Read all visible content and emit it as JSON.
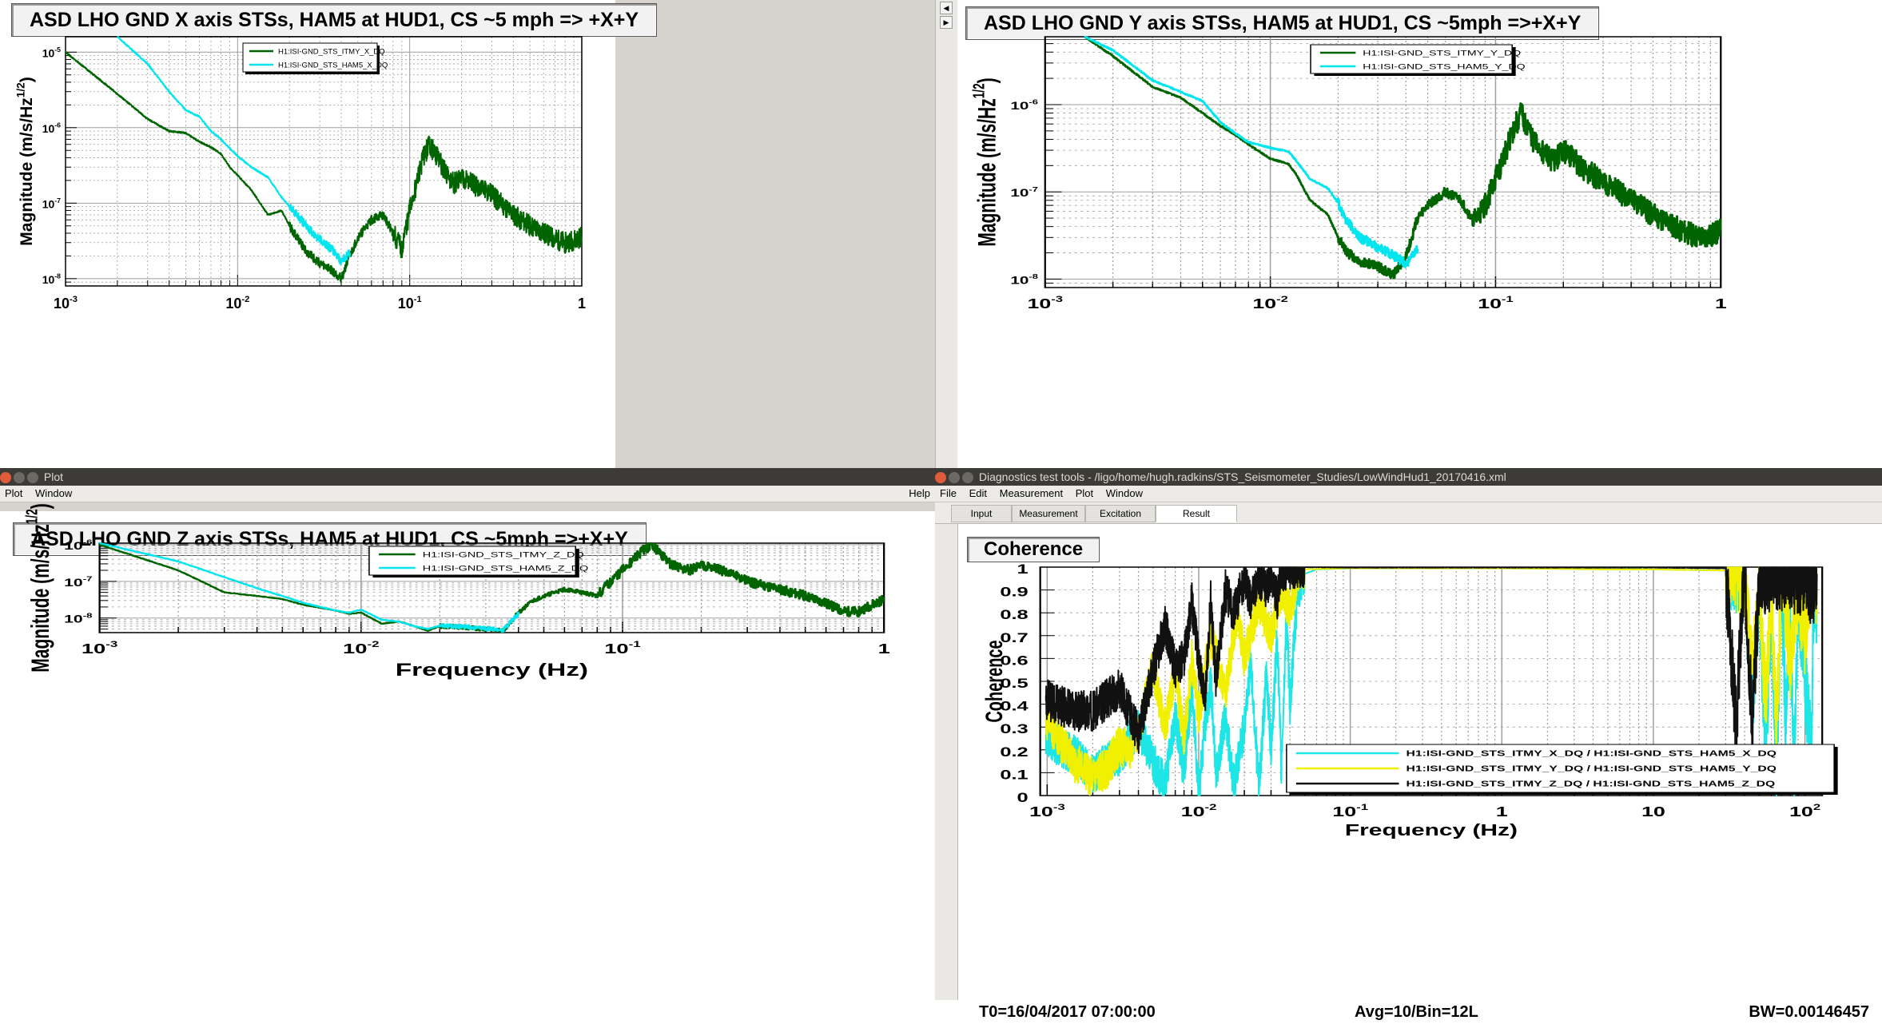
{
  "colors": {
    "itmy": "#006400",
    "ham5": "#00e5ee",
    "coh_x": "#1ee6e6",
    "coh_y": "#f0f000",
    "coh_z": "#111111",
    "grid": "#9e9e9e"
  },
  "windows": {
    "plot_title": "Plot",
    "plot_menu": [
      "Plot",
      "Window"
    ],
    "plot_help": "Help",
    "dtt_title": "Diagnostics test tools - /ligo/home/hugh.radkins/STS_Seismometer_Studies/LowWindHud1_20170416.xml",
    "dtt_menu": [
      "File",
      "Edit",
      "Measurement",
      "Plot",
      "Window"
    ],
    "dtt_tabs": [
      "Input",
      "Measurement",
      "Excitation",
      "Result"
    ]
  },
  "chart_data": [
    {
      "id": "x",
      "type": "line",
      "title": "ASD LHO GND X axis STSs, HAM5 at HUD1, CS ~5 mph => +X+Y",
      "xlabel": "",
      "ylabel": "Magnitude (m/s/Hz",
      "ylabel_sup": "1/2",
      "ylabel_end": ")",
      "xscale": "log",
      "yscale": "log",
      "xlim": [
        0.001,
        1
      ],
      "ylim": [
        8e-09,
        1.6e-05
      ],
      "xticks": [
        {
          "v": 0.001,
          "b": "10",
          "e": "-3"
        },
        {
          "v": 0.01,
          "b": "10",
          "e": "-2"
        },
        {
          "v": 0.1,
          "b": "10",
          "e": "-1"
        },
        {
          "v": 1,
          "b": "1",
          "e": ""
        }
      ],
      "yticks": [
        {
          "v": 1e-08,
          "b": "10",
          "e": "-8"
        },
        {
          "v": 1e-07,
          "b": "10",
          "e": "-7"
        },
        {
          "v": 1e-06,
          "b": "10",
          "e": "-6"
        },
        {
          "v": 1e-05,
          "b": "10",
          "e": "-5"
        }
      ],
      "legend": [
        "H1:ISI-GND_STS_ITMY_X_DQ",
        "H1:ISI-GND_STS_HAM5_X_DQ"
      ],
      "series": [
        {
          "name": "H1:ISI-GND_STS_ITMY_X_DQ",
          "x": [
            0.001,
            0.002,
            0.003,
            0.004,
            0.005,
            0.006,
            0.007,
            0.008,
            0.009,
            0.012,
            0.015,
            0.018,
            0.02,
            0.025,
            0.03,
            0.035,
            0.04,
            0.045,
            0.05,
            0.06,
            0.07,
            0.08,
            0.09,
            0.1,
            0.12,
            0.13,
            0.15,
            0.18,
            0.2,
            0.25,
            0.3,
            0.4,
            0.5,
            0.6,
            0.7,
            0.8,
            0.9,
            1.0
          ],
          "y": [
            1e-05,
            2.8e-06,
            1.3e-06,
            9e-07,
            8.5e-07,
            6.5e-07,
            5.5e-07,
            4.5e-07,
            3e-07,
            1.5e-07,
            7e-08,
            8e-08,
            5e-08,
            2.3e-08,
            1.6e-08,
            1.3e-08,
            1e-08,
            2e-08,
            3.5e-08,
            6e-08,
            7e-08,
            4e-08,
            2.5e-08,
            8e-08,
            4e-07,
            6e-07,
            3.5e-07,
            1.8e-07,
            2.2e-07,
            1.6e-07,
            1.3e-07,
            7e-08,
            5e-08,
            4e-08,
            3.3e-08,
            3e-08,
            3.2e-08,
            3.6e-08
          ]
        },
        {
          "name": "H1:ISI-GND_STS_HAM5_X_DQ",
          "x": [
            0.002,
            0.003,
            0.004,
            0.005,
            0.006,
            0.007,
            0.008,
            0.01,
            0.012,
            0.015,
            0.018,
            0.02,
            0.025,
            0.03,
            0.035,
            0.04,
            0.045
          ],
          "y": [
            1.6e-05,
            7e-06,
            3e-06,
            1.7e-06,
            1.4e-06,
            9e-07,
            7e-07,
            4.2e-07,
            3e-07,
            2.2e-07,
            1.2e-07,
            9e-08,
            5e-08,
            3.3e-08,
            2.5e-08,
            1.7e-08,
            2.2e-08
          ]
        }
      ]
    },
    {
      "id": "y",
      "type": "line",
      "title": "ASD LHO GND Y axis STSs, HAM5 at HUD1, CS ~5mph =>+X+Y",
      "xlabel": "",
      "ylabel": "Magnitude (m/s/Hz",
      "ylabel_sup": "1/2",
      "ylabel_end": ")",
      "xscale": "log",
      "yscale": "log",
      "xlim": [
        0.001,
        1
      ],
      "ylim": [
        8e-09,
        6e-06
      ],
      "xticks": [
        {
          "v": 0.001,
          "b": "10",
          "e": "-3"
        },
        {
          "v": 0.01,
          "b": "10",
          "e": "-2"
        },
        {
          "v": 0.1,
          "b": "10",
          "e": "-1"
        },
        {
          "v": 1,
          "b": "1",
          "e": ""
        }
      ],
      "yticks": [
        {
          "v": 1e-08,
          "b": "10",
          "e": "-8"
        },
        {
          "v": 1e-07,
          "b": "10",
          "e": "-7"
        },
        {
          "v": 1e-06,
          "b": "10",
          "e": "-6"
        }
      ],
      "legend": [
        "H1:ISI-GND_STS_ITMY_Y_DQ",
        "H1:ISI-GND_STS_HAM5_Y_DQ"
      ],
      "series": [
        {
          "name": "H1:ISI-GND_STS_ITMY_Y_DQ",
          "x": [
            0.0015,
            0.002,
            0.003,
            0.004,
            0.005,
            0.006,
            0.007,
            0.008,
            0.01,
            0.012,
            0.013,
            0.015,
            0.018,
            0.02,
            0.022,
            0.025,
            0.03,
            0.035,
            0.04,
            0.045,
            0.05,
            0.06,
            0.07,
            0.08,
            0.09,
            0.1,
            0.12,
            0.13,
            0.15,
            0.18,
            0.2,
            0.25,
            0.3,
            0.4,
            0.5,
            0.6,
            0.7,
            0.8,
            0.9,
            1.0
          ],
          "y": [
            6e-06,
            3.6e-06,
            1.6e-06,
            1.2e-06,
            8e-07,
            5.7e-07,
            4.5e-07,
            3.5e-07,
            2.4e-07,
            2.1e-07,
            1.6e-07,
            8e-08,
            5.5e-08,
            3e-08,
            2e-08,
            1.6e-08,
            1.4e-08,
            1.1e-08,
            1.8e-08,
            5e-08,
            7e-08,
            1e-07,
            8e-08,
            4.5e-08,
            7e-08,
            1.4e-07,
            5e-07,
            8e-07,
            3.5e-07,
            2.2e-07,
            3e-07,
            1.8e-07,
            1.3e-07,
            8e-08,
            5.5e-08,
            4.2e-08,
            3.4e-08,
            3e-08,
            3.1e-08,
            3.6e-08
          ]
        },
        {
          "name": "H1:ISI-GND_STS_HAM5_Y_DQ",
          "x": [
            0.0015,
            0.002,
            0.003,
            0.004,
            0.005,
            0.006,
            0.007,
            0.008,
            0.01,
            0.012,
            0.013,
            0.015,
            0.018,
            0.02,
            0.022,
            0.025,
            0.03,
            0.035,
            0.04,
            0.045
          ],
          "y": [
            6e-06,
            4.2e-06,
            1.9e-06,
            1.4e-06,
            1.1e-06,
            6.3e-07,
            4.7e-07,
            3.7e-07,
            3.2e-07,
            2.9e-07,
            2.3e-07,
            1.4e-07,
            1.1e-07,
            7.5e-08,
            4.5e-08,
            3e-08,
            2.3e-08,
            1.9e-08,
            1.5e-08,
            2.2e-08
          ]
        }
      ]
    },
    {
      "id": "z",
      "type": "line",
      "title": "ASD LHO GND Z axis STSs, HAM5 at HUD1, CS ~5mph =>+X+Y",
      "xlabel": "Frequency (Hz)",
      "ylabel": "Magnitude (m/s/Hz",
      "ylabel_sup": "1/2",
      "ylabel_end": ")",
      "xscale": "log",
      "yscale": "log",
      "xlim": [
        0.001,
        1
      ],
      "ylim": [
        4e-09,
        1.1e-06
      ],
      "xticks": [
        {
          "v": 0.001,
          "b": "10",
          "e": "-3"
        },
        {
          "v": 0.01,
          "b": "10",
          "e": "-2"
        },
        {
          "v": 0.1,
          "b": "10",
          "e": "-1"
        },
        {
          "v": 1,
          "b": "1",
          "e": ""
        }
      ],
      "yticks": [
        {
          "v": 1e-08,
          "b": "10",
          "e": "-8"
        },
        {
          "v": 1e-07,
          "b": "10",
          "e": "-7"
        },
        {
          "v": 1e-06,
          "b": "10",
          "e": "-6"
        }
      ],
      "legend": [
        "H1:ISI-GND_STS_ITMY_Z_DQ",
        "H1:ISI-GND_STS_HAM5_Z_DQ"
      ],
      "series": [
        {
          "name": "H1:ISI-GND_STS_ITMY_Z_DQ",
          "x": [
            0.001,
            0.002,
            0.003,
            0.004,
            0.005,
            0.006,
            0.007,
            0.008,
            0.009,
            0.01,
            0.012,
            0.014,
            0.016,
            0.018,
            0.02,
            0.025,
            0.03,
            0.035,
            0.04,
            0.045,
            0.05,
            0.06,
            0.07,
            0.08,
            0.09,
            0.1,
            0.12,
            0.13,
            0.15,
            0.18,
            0.2,
            0.25,
            0.3,
            0.4,
            0.5,
            0.6,
            0.7,
            0.8,
            0.9,
            1.0
          ],
          "y": [
            1e-06,
            2e-07,
            5e-08,
            4e-08,
            3.3e-08,
            2.3e-08,
            1.9e-08,
            1.6e-08,
            1.3e-08,
            1.4e-08,
            7e-09,
            8e-09,
            6e-09,
            4.5e-09,
            6e-09,
            5.5e-09,
            5e-09,
            4.5e-09,
            1.4e-08,
            2.8e-08,
            4e-08,
            6e-08,
            5e-08,
            4e-08,
            1e-07,
            2e-07,
            7e-07,
            1e-06,
            3.2e-07,
            2e-07,
            2.8e-07,
            1.8e-07,
            1e-07,
            6e-08,
            4e-08,
            2.5e-08,
            1.5e-08,
            1.5e-08,
            2.3e-08,
            3.2e-08
          ]
        },
        {
          "name": "H1:ISI-GND_STS_HAM5_Z_DQ",
          "x": [
            0.001,
            0.002,
            0.003,
            0.004,
            0.005,
            0.006,
            0.007,
            0.008,
            0.009,
            0.01,
            0.012,
            0.014,
            0.016,
            0.018,
            0.02,
            0.025,
            0.03,
            0.035,
            0.04
          ],
          "y": [
            1.1e-06,
            3.5e-07,
            1.3e-07,
            6.5e-08,
            4e-08,
            2.6e-08,
            2e-08,
            1.6e-08,
            1.4e-08,
            1.7e-08,
            9e-09,
            8e-09,
            6e-09,
            5e-09,
            6.2e-09,
            5.8e-09,
            5.2e-09,
            4.7e-09,
            1.3e-08
          ]
        }
      ]
    },
    {
      "id": "coh",
      "type": "line",
      "title": "Coherence",
      "xlabel": "Frequency (Hz)",
      "ylabel": "Coherence",
      "xscale": "log",
      "yscale": "linear",
      "xlim": [
        0.0009,
        130
      ],
      "ylim": [
        0,
        1
      ],
      "xticks": [
        {
          "v": 0.001,
          "b": "10",
          "e": "-3"
        },
        {
          "v": 0.01,
          "b": "10",
          "e": "-2"
        },
        {
          "v": 0.1,
          "b": "10",
          "e": "-1"
        },
        {
          "v": 1,
          "b": "1",
          "e": ""
        },
        {
          "v": 10,
          "b": "10",
          "e": ""
        },
        {
          "v": 100,
          "b": "10",
          "e": "2"
        }
      ],
      "yticks": [
        {
          "v": 0,
          "t": "0"
        },
        {
          "v": 0.1,
          "t": "0.1"
        },
        {
          "v": 0.2,
          "t": "0.2"
        },
        {
          "v": 0.3,
          "t": "0.3"
        },
        {
          "v": 0.4,
          "t": "0.4"
        },
        {
          "v": 0.5,
          "t": "0.5"
        },
        {
          "v": 0.6,
          "t": "0.6"
        },
        {
          "v": 0.7,
          "t": "0.7"
        },
        {
          "v": 0.8,
          "t": "0.8"
        },
        {
          "v": 0.9,
          "t": "0.9"
        },
        {
          "v": 1,
          "t": "1"
        }
      ],
      "legend": [
        "H1:ISI-GND_STS_ITMY_X_DQ / H1:ISI-GND_STS_HAM5_X_DQ",
        "H1:ISI-GND_STS_ITMY_Y_DQ / H1:ISI-GND_STS_HAM5_Y_DQ",
        "H1:ISI-GND_STS_ITMY_Z_DQ / H1:ISI-GND_STS_HAM5_Z_DQ"
      ],
      "series": [
        {
          "name": "H1:ISI-GND_STS_ITMY_X_DQ / H1:ISI-GND_STS_HAM5_X_DQ",
          "x": [
            0.00098,
            0.0015,
            0.002,
            0.003,
            0.004,
            0.005,
            0.006,
            0.007,
            0.008,
            0.009,
            0.01,
            0.011,
            0.012,
            0.013,
            0.015,
            0.017,
            0.02,
            0.022,
            0.025,
            0.028,
            0.03,
            0.033,
            0.035,
            0.038,
            0.04,
            0.045,
            0.05,
            0.06,
            0.1,
            0.5,
            1,
            5,
            10,
            30,
            40,
            45,
            50,
            55,
            60,
            65,
            70,
            75,
            80,
            85,
            90,
            100,
            110,
            115,
            120
          ],
          "y": [
            0.25,
            0.18,
            0.1,
            0.18,
            0.3,
            0.15,
            0.05,
            0.35,
            0.1,
            0.48,
            0.02,
            0.3,
            0.5,
            0.1,
            0.35,
            0.05,
            0.3,
            0.6,
            0.02,
            0.55,
            0.2,
            0.7,
            0.1,
            0.8,
            0.4,
            0.9,
            0.97,
            0.99,
            0.995,
            0.995,
            0.995,
            0.99,
            0.99,
            0.985,
            0.95,
            0.4,
            0.9,
            0.2,
            0.8,
            0.1,
            0.95,
            0.3,
            0.85,
            0.05,
            0.9,
            0.5,
            0.2,
            0.9,
            0.8
          ]
        },
        {
          "name": "H1:ISI-GND_STS_ITMY_Y_DQ / H1:ISI-GND_STS_HAM5_Y_DQ",
          "x": [
            0.00098,
            0.0015,
            0.002,
            0.0025,
            0.003,
            0.0035,
            0.004,
            0.005,
            0.006,
            0.007,
            0.008,
            0.009,
            0.01,
            0.012,
            0.015,
            0.018,
            0.02,
            0.025,
            0.03,
            0.035,
            0.04,
            0.045,
            0.05,
            0.1,
            0.5,
            1,
            5,
            10,
            30,
            40,
            45,
            50,
            55,
            60,
            65,
            70,
            80,
            90,
            100,
            110,
            115,
            120
          ],
          "y": [
            0.33,
            0.15,
            0.08,
            0.12,
            0.22,
            0.2,
            0.28,
            0.56,
            0.3,
            0.55,
            0.25,
            0.6,
            0.35,
            0.7,
            0.45,
            0.8,
            0.6,
            0.85,
            0.7,
            0.9,
            0.8,
            0.97,
            0.99,
            0.995,
            0.995,
            0.995,
            0.99,
            0.99,
            0.985,
            0.96,
            0.5,
            0.95,
            0.4,
            0.9,
            0.3,
            0.95,
            0.6,
            0.9,
            0.7,
            0.95,
            0.98,
            0.9
          ]
        },
        {
          "name": "H1:ISI-GND_STS_ITMY_Z_DQ / H1:ISI-GND_STS_HAM5_Z_DQ",
          "x": [
            0.00098,
            0.0015,
            0.002,
            0.003,
            0.004,
            0.005,
            0.006,
            0.007,
            0.008,
            0.009,
            0.01,
            0.011,
            0.012,
            0.013,
            0.015,
            0.017,
            0.02,
            0.022,
            0.025,
            0.028,
            0.03,
            0.033,
            0.035,
            0.04,
            0.045,
            0.05,
            0.1,
            1,
            10,
            30,
            35,
            40,
            45,
            50,
            55,
            60,
            70,
            80,
            90,
            100,
            110,
            120
          ],
          "y": [
            0.42,
            0.37,
            0.37,
            0.47,
            0.27,
            0.55,
            0.75,
            0.55,
            0.6,
            0.85,
            0.6,
            0.4,
            0.85,
            0.5,
            0.9,
            0.8,
            0.95,
            0.85,
            0.95,
            0.9,
            0.98,
            0.85,
            0.98,
            0.99,
            0.995,
            1.0,
            0.998,
            0.998,
            0.998,
            0.995,
            0.3,
            0.98,
            0.3,
            0.97,
            0.95,
            0.99,
            0.98,
            0.99,
            0.95,
            0.99,
            0.9,
            0.97
          ]
        }
      ]
    }
  ],
  "status": {
    "t0": "T0=16/04/2017 07:00:00",
    "avg": "Avg=10/Bin=12L",
    "bw": "BW=0.00146457"
  }
}
